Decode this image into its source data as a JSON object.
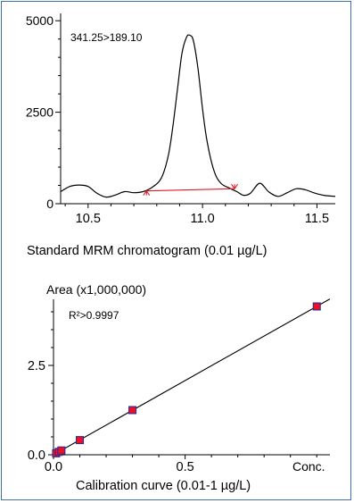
{
  "colors": {
    "frame": "#3f6fb0",
    "trace": "#000000",
    "baseline_arrow": "#e01b24",
    "point_fill": "#e8102b",
    "point_edge": "#2a2a8c"
  },
  "chart_data": [
    {
      "type": "line",
      "caption": "Standard MRM chromatogram (0.01 µg/L)",
      "annotation": "341.25>189.10",
      "xlim": [
        10.38,
        11.58
      ],
      "ylim": [
        0,
        5200
      ],
      "x_ticks": [
        10.5,
        11.0,
        11.5
      ],
      "x_tick_labels": [
        "10.5",
        "11.0",
        "11.5"
      ],
      "y_ticks": [
        0,
        2500,
        5000
      ],
      "y_tick_labels": [
        "0",
        "2500",
        "5000"
      ],
      "grid": false,
      "series": [
        {
          "x": [
            10.38,
            10.42,
            10.46,
            10.5,
            10.54,
            10.58,
            10.62,
            10.66,
            10.7,
            10.74,
            10.78,
            10.82,
            10.85,
            10.87,
            10.89,
            10.91,
            10.93,
            10.945,
            10.96,
            10.98,
            11.0,
            11.02,
            11.05,
            11.08,
            11.12,
            11.15,
            11.18,
            11.21,
            11.25,
            11.29,
            11.33,
            11.37,
            11.41,
            11.45,
            11.49,
            11.53,
            11.58
          ],
          "y": [
            330,
            470,
            510,
            470,
            280,
            180,
            240,
            330,
            300,
            330,
            450,
            700,
            1300,
            2100,
            3100,
            4100,
            4550,
            4600,
            4450,
            3700,
            2600,
            1700,
            900,
            560,
            420,
            330,
            230,
            290,
            560,
            320,
            200,
            300,
            410,
            380,
            290,
            230,
            200
          ]
        }
      ],
      "baseline": {
        "x1": 10.755,
        "y1": 350,
        "x2": 11.14,
        "y2": 410
      }
    },
    {
      "type": "scatter",
      "caption": "Calibration curve (0.01-1 µg/L)",
      "ylabel": "Area (x1,000,000)",
      "xlabel": "Conc.",
      "annotation": "R²>0.9997",
      "xlim": [
        0,
        1.05
      ],
      "ylim": [
        0,
        4.35
      ],
      "x_ticks": [
        0,
        0.5
      ],
      "x_tick_labels": [
        "0.0",
        "0.5"
      ],
      "y_ticks": [
        0,
        2.5
      ],
      "y_tick_labels": [
        "0.0",
        "2.5"
      ],
      "grid": false,
      "points": {
        "x": [
          0.01,
          0.02,
          0.03,
          0.1,
          0.3,
          1.0
        ],
        "y": [
          0.04,
          0.08,
          0.12,
          0.41,
          1.25,
          4.15
        ]
      },
      "fit_line": {
        "x": [
          0,
          1.05
        ],
        "y": [
          0.0,
          4.36
        ]
      }
    }
  ]
}
